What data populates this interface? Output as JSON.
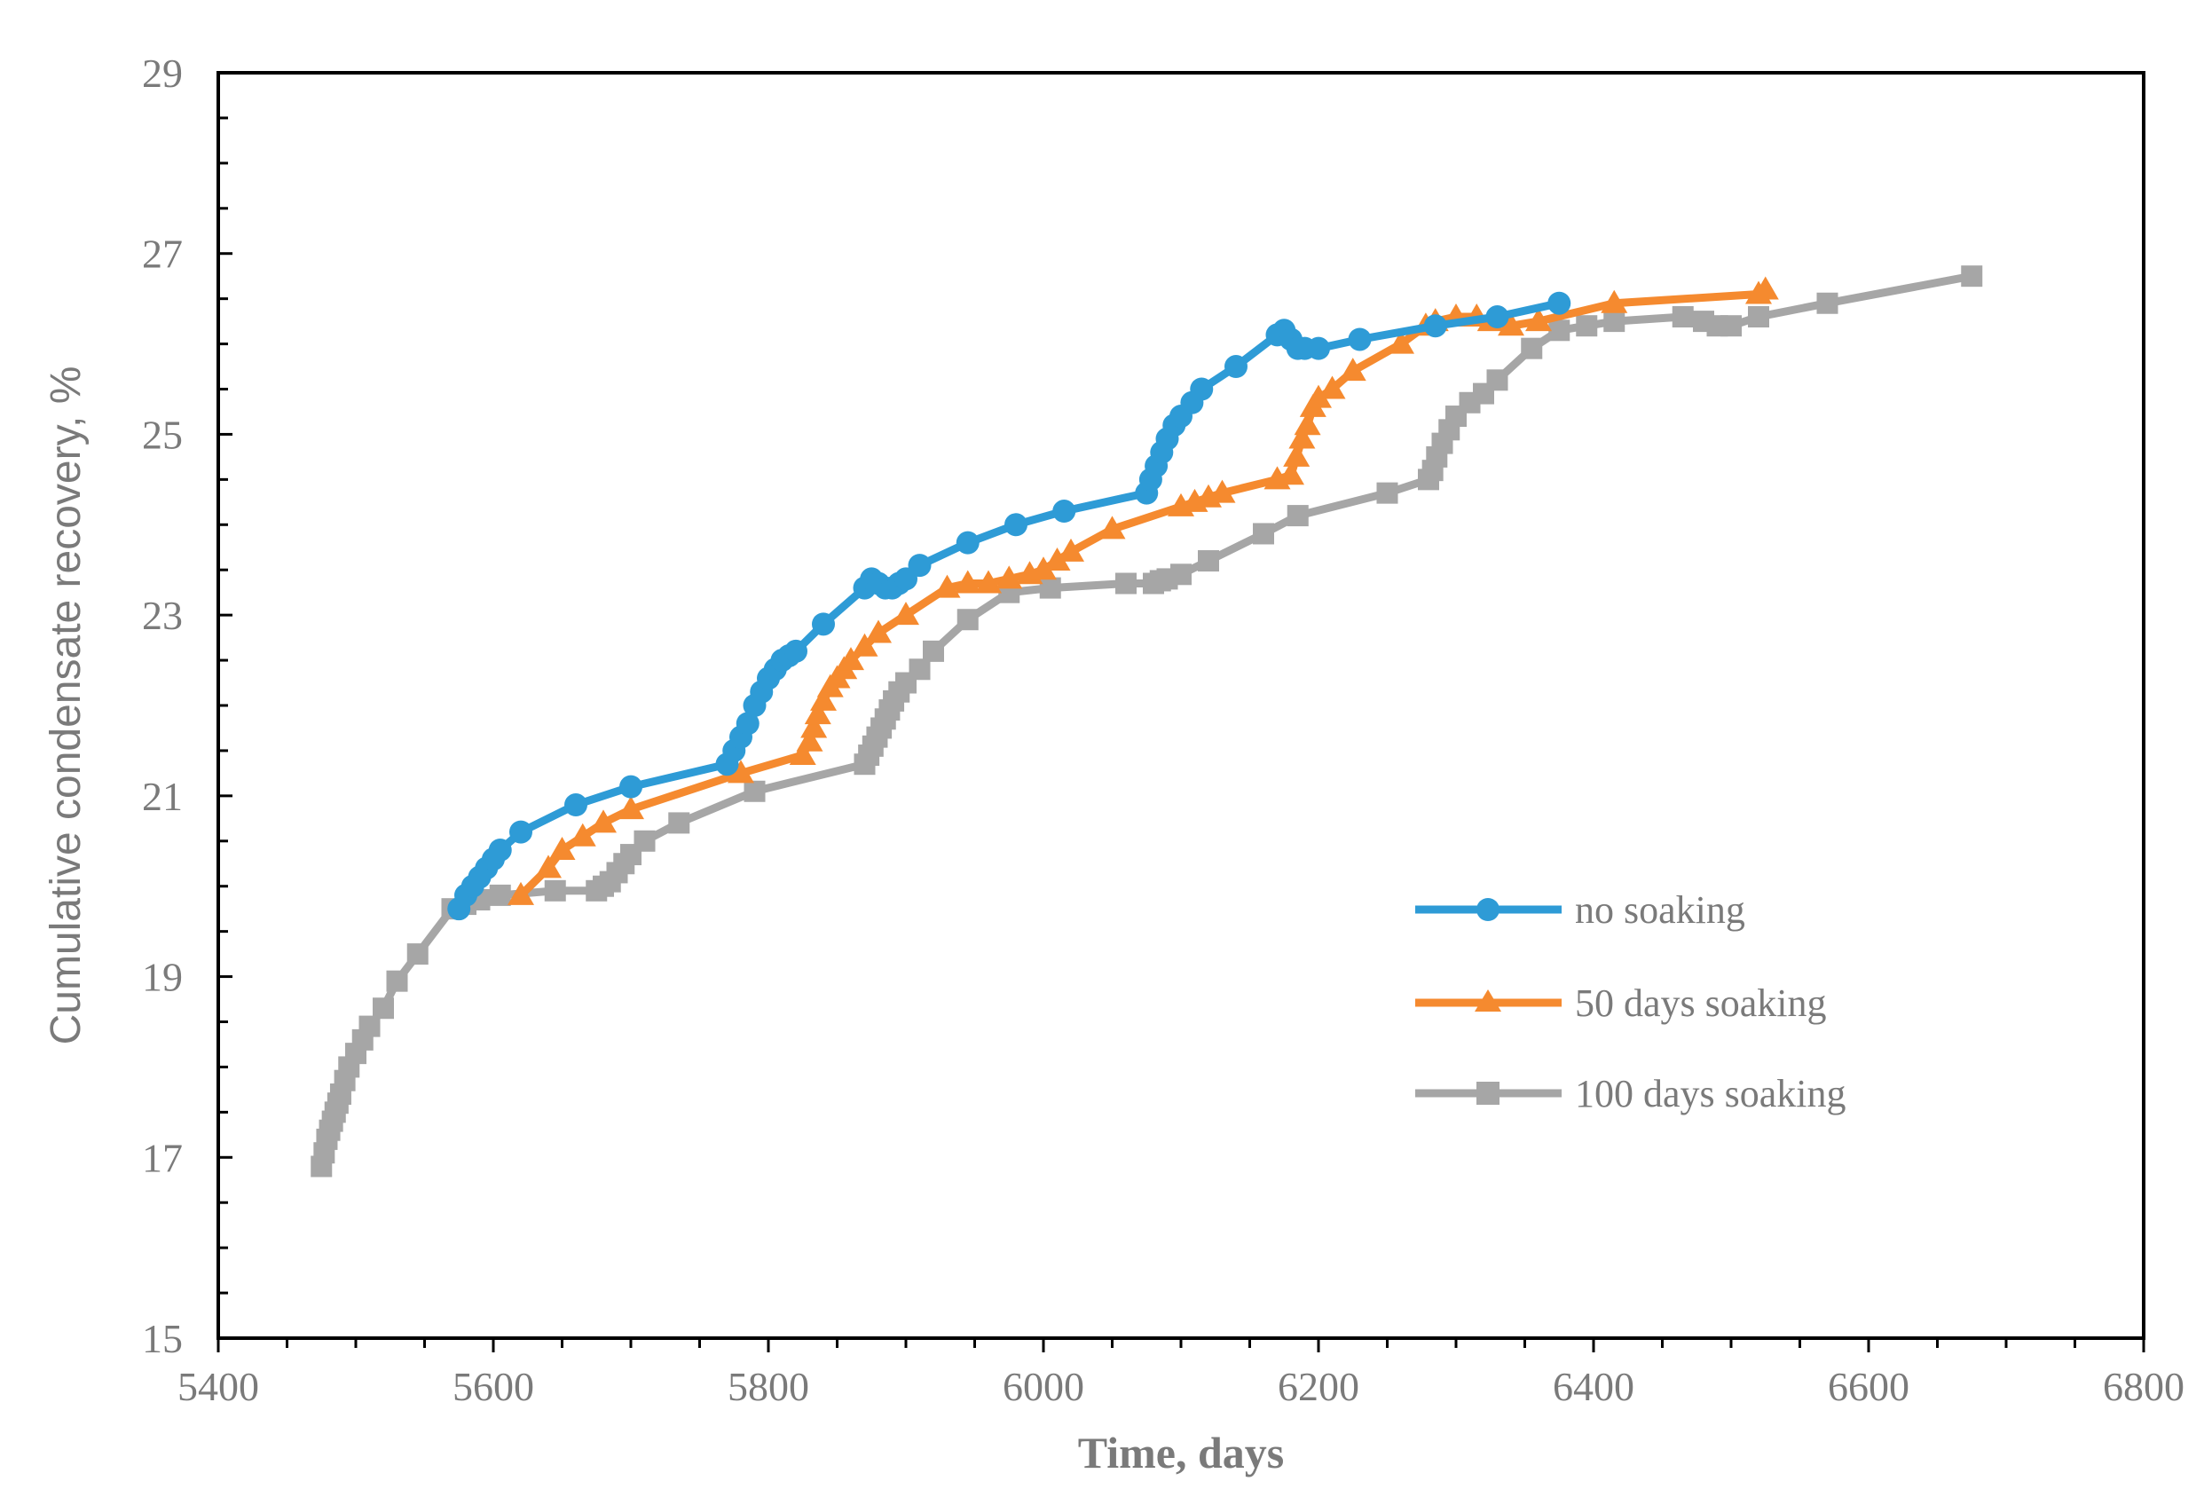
{
  "chart_data": {
    "type": "line",
    "title": "",
    "xlabel": "Time, days",
    "ylabel": "Cumulative condensate recovery, %",
    "xlim": [
      5400,
      6800
    ],
    "ylim": [
      15,
      29
    ],
    "xticks": [
      "5400",
      "5600",
      "5800",
      "6000",
      "6200",
      "6400",
      "6600",
      "6800"
    ],
    "yticks": [
      "15",
      "17",
      "19",
      "21",
      "23",
      "25",
      "27",
      "29"
    ],
    "grid": false,
    "legend_position": "right-middle",
    "series": [
      {
        "name": "no soaking",
        "color": "#2e9bd6",
        "marker": "circle",
        "x": [
          5575,
          5580,
          5585,
          5590,
          5595,
          5600,
          5605,
          5620,
          5660,
          5700,
          5770,
          5775,
          5780,
          5785,
          5790,
          5795,
          5800,
          5805,
          5810,
          5815,
          5820,
          5840,
          5870,
          5875,
          5880,
          5885,
          5890,
          5895,
          5900,
          5910,
          5945,
          5980,
          6015,
          6075,
          6078,
          6082,
          6086,
          6090,
          6095,
          6100,
          6108,
          6115,
          6140,
          6170,
          6175,
          6180,
          6185,
          6190,
          6200,
          6230,
          6285,
          6330,
          6375
        ],
        "y": [
          19.75,
          19.9,
          20.0,
          20.1,
          20.2,
          20.3,
          20.4,
          20.6,
          20.9,
          21.1,
          21.35,
          21.5,
          21.65,
          21.8,
          22.0,
          22.15,
          22.3,
          22.4,
          22.5,
          22.55,
          22.6,
          22.9,
          23.3,
          23.4,
          23.35,
          23.3,
          23.3,
          23.35,
          23.4,
          23.55,
          23.8,
          24.0,
          24.15,
          24.35,
          24.5,
          24.65,
          24.8,
          24.95,
          25.1,
          25.2,
          25.35,
          25.5,
          25.75,
          26.1,
          26.15,
          26.05,
          25.95,
          25.95,
          25.95,
          26.05,
          26.2,
          26.3,
          26.45
        ]
      },
      {
        "name": "50 days soaking",
        "color": "#f58a2f",
        "marker": "triangle",
        "x": [
          5620,
          5640,
          5650,
          5665,
          5680,
          5700,
          5780,
          5825,
          5830,
          5833,
          5836,
          5840,
          5845,
          5850,
          5855,
          5860,
          5870,
          5880,
          5900,
          5930,
          5945,
          5960,
          5975,
          5990,
          6000,
          6010,
          6020,
          6050,
          6100,
          6110,
          6120,
          6130,
          6170,
          6180,
          6184,
          6188,
          6192,
          6196,
          6200,
          6210,
          6225,
          6260,
          6278,
          6285,
          6300,
          6315,
          6325,
          6340,
          6360,
          6415,
          6520,
          6525
        ],
        "y": [
          19.9,
          20.2,
          20.4,
          20.55,
          20.7,
          20.85,
          21.25,
          21.45,
          21.6,
          21.75,
          21.9,
          22.05,
          22.2,
          22.3,
          22.4,
          22.5,
          22.65,
          22.8,
          23.0,
          23.3,
          23.35,
          23.35,
          23.4,
          23.45,
          23.5,
          23.6,
          23.7,
          23.95,
          24.2,
          24.25,
          24.3,
          24.35,
          24.5,
          24.55,
          24.75,
          24.95,
          25.1,
          25.3,
          25.4,
          25.5,
          25.7,
          26.0,
          26.2,
          26.25,
          26.3,
          26.3,
          26.25,
          26.2,
          26.25,
          26.45,
          26.55,
          26.6
        ]
      },
      {
        "name": "100 days soaking",
        "color": "#a6a6a6",
        "marker": "square",
        "x": [
          5475,
          5477,
          5479,
          5481,
          5483,
          5485,
          5487,
          5489,
          5492,
          5495,
          5500,
          5505,
          5510,
          5520,
          5530,
          5545,
          5570,
          5580,
          5590,
          5605,
          5645,
          5675,
          5680,
          5685,
          5690,
          5695,
          5700,
          5710,
          5735,
          5790,
          5870,
          5873,
          5876,
          5879,
          5882,
          5885,
          5888,
          5891,
          5895,
          5900,
          5910,
          5920,
          5945,
          5975,
          6005,
          6060,
          6080,
          6085,
          6090,
          6100,
          6120,
          6160,
          6185,
          6250,
          6280,
          6283,
          6286,
          6290,
          6295,
          6300,
          6310,
          6320,
          6330,
          6355,
          6375,
          6395,
          6415,
          6465,
          6480,
          6490,
          6500,
          6520,
          6570,
          6675
        ],
        "y": [
          16.9,
          17.05,
          17.2,
          17.3,
          17.4,
          17.5,
          17.6,
          17.7,
          17.85,
          18.0,
          18.15,
          18.3,
          18.45,
          18.65,
          18.95,
          19.25,
          19.75,
          19.8,
          19.85,
          19.9,
          19.95,
          19.95,
          20.0,
          20.05,
          20.15,
          20.25,
          20.35,
          20.5,
          20.7,
          21.05,
          21.35,
          21.45,
          21.55,
          21.65,
          21.75,
          21.85,
          21.95,
          22.05,
          22.15,
          22.25,
          22.4,
          22.6,
          22.95,
          23.25,
          23.3,
          23.35,
          23.35,
          23.38,
          23.4,
          23.45,
          23.6,
          23.9,
          24.1,
          24.35,
          24.5,
          24.6,
          24.75,
          24.9,
          25.05,
          25.2,
          25.35,
          25.45,
          25.6,
          25.95,
          26.15,
          26.2,
          26.25,
          26.3,
          26.25,
          26.2,
          26.2,
          26.3,
          26.45,
          26.75
        ]
      }
    ]
  }
}
